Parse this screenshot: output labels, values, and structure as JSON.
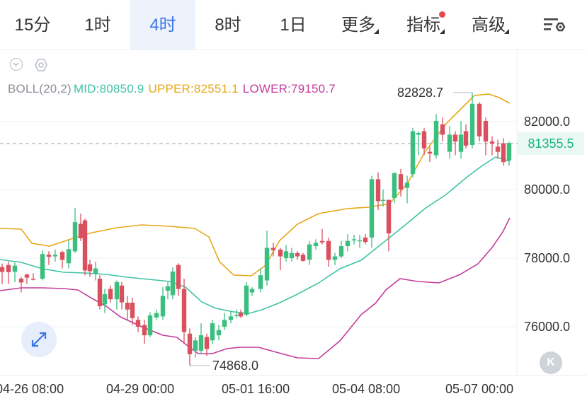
{
  "timeframe_tabs": [
    {
      "label": "15分"
    },
    {
      "label": "1时"
    },
    {
      "label": "4时"
    },
    {
      "label": "8时"
    },
    {
      "label": "1日"
    },
    {
      "label": "更多"
    },
    {
      "label": "指标"
    },
    {
      "label": "高级"
    }
  ],
  "active_tab": "4时",
  "settings_icon": "chart-settings-icon",
  "indicator": {
    "name": "BOLL(20,2)",
    "mid": "MID:80850.9",
    "upper": "UPPER:82551.1",
    "lower": "LOWER:79150.7"
  },
  "current_price": "81355.5",
  "high_marker": "82828.7",
  "low_marker": "74868.0",
  "y_axis_labels": [
    "82000.0",
    "80000.0",
    "78000.0",
    "76000.0"
  ],
  "x_axis_labels": [
    "04-26 08:00",
    "04-29 00:00",
    "05-01 16:00",
    "05-04 08:00",
    "05-07 00:00"
  ],
  "k_button_label": "K",
  "colors": {
    "up": "#3bbf7f",
    "down": "#d9505f",
    "mid": "#3fc4a4",
    "upper": "#e6a817",
    "lower": "#c33c9c",
    "accent": "#3b74e6"
  }
}
